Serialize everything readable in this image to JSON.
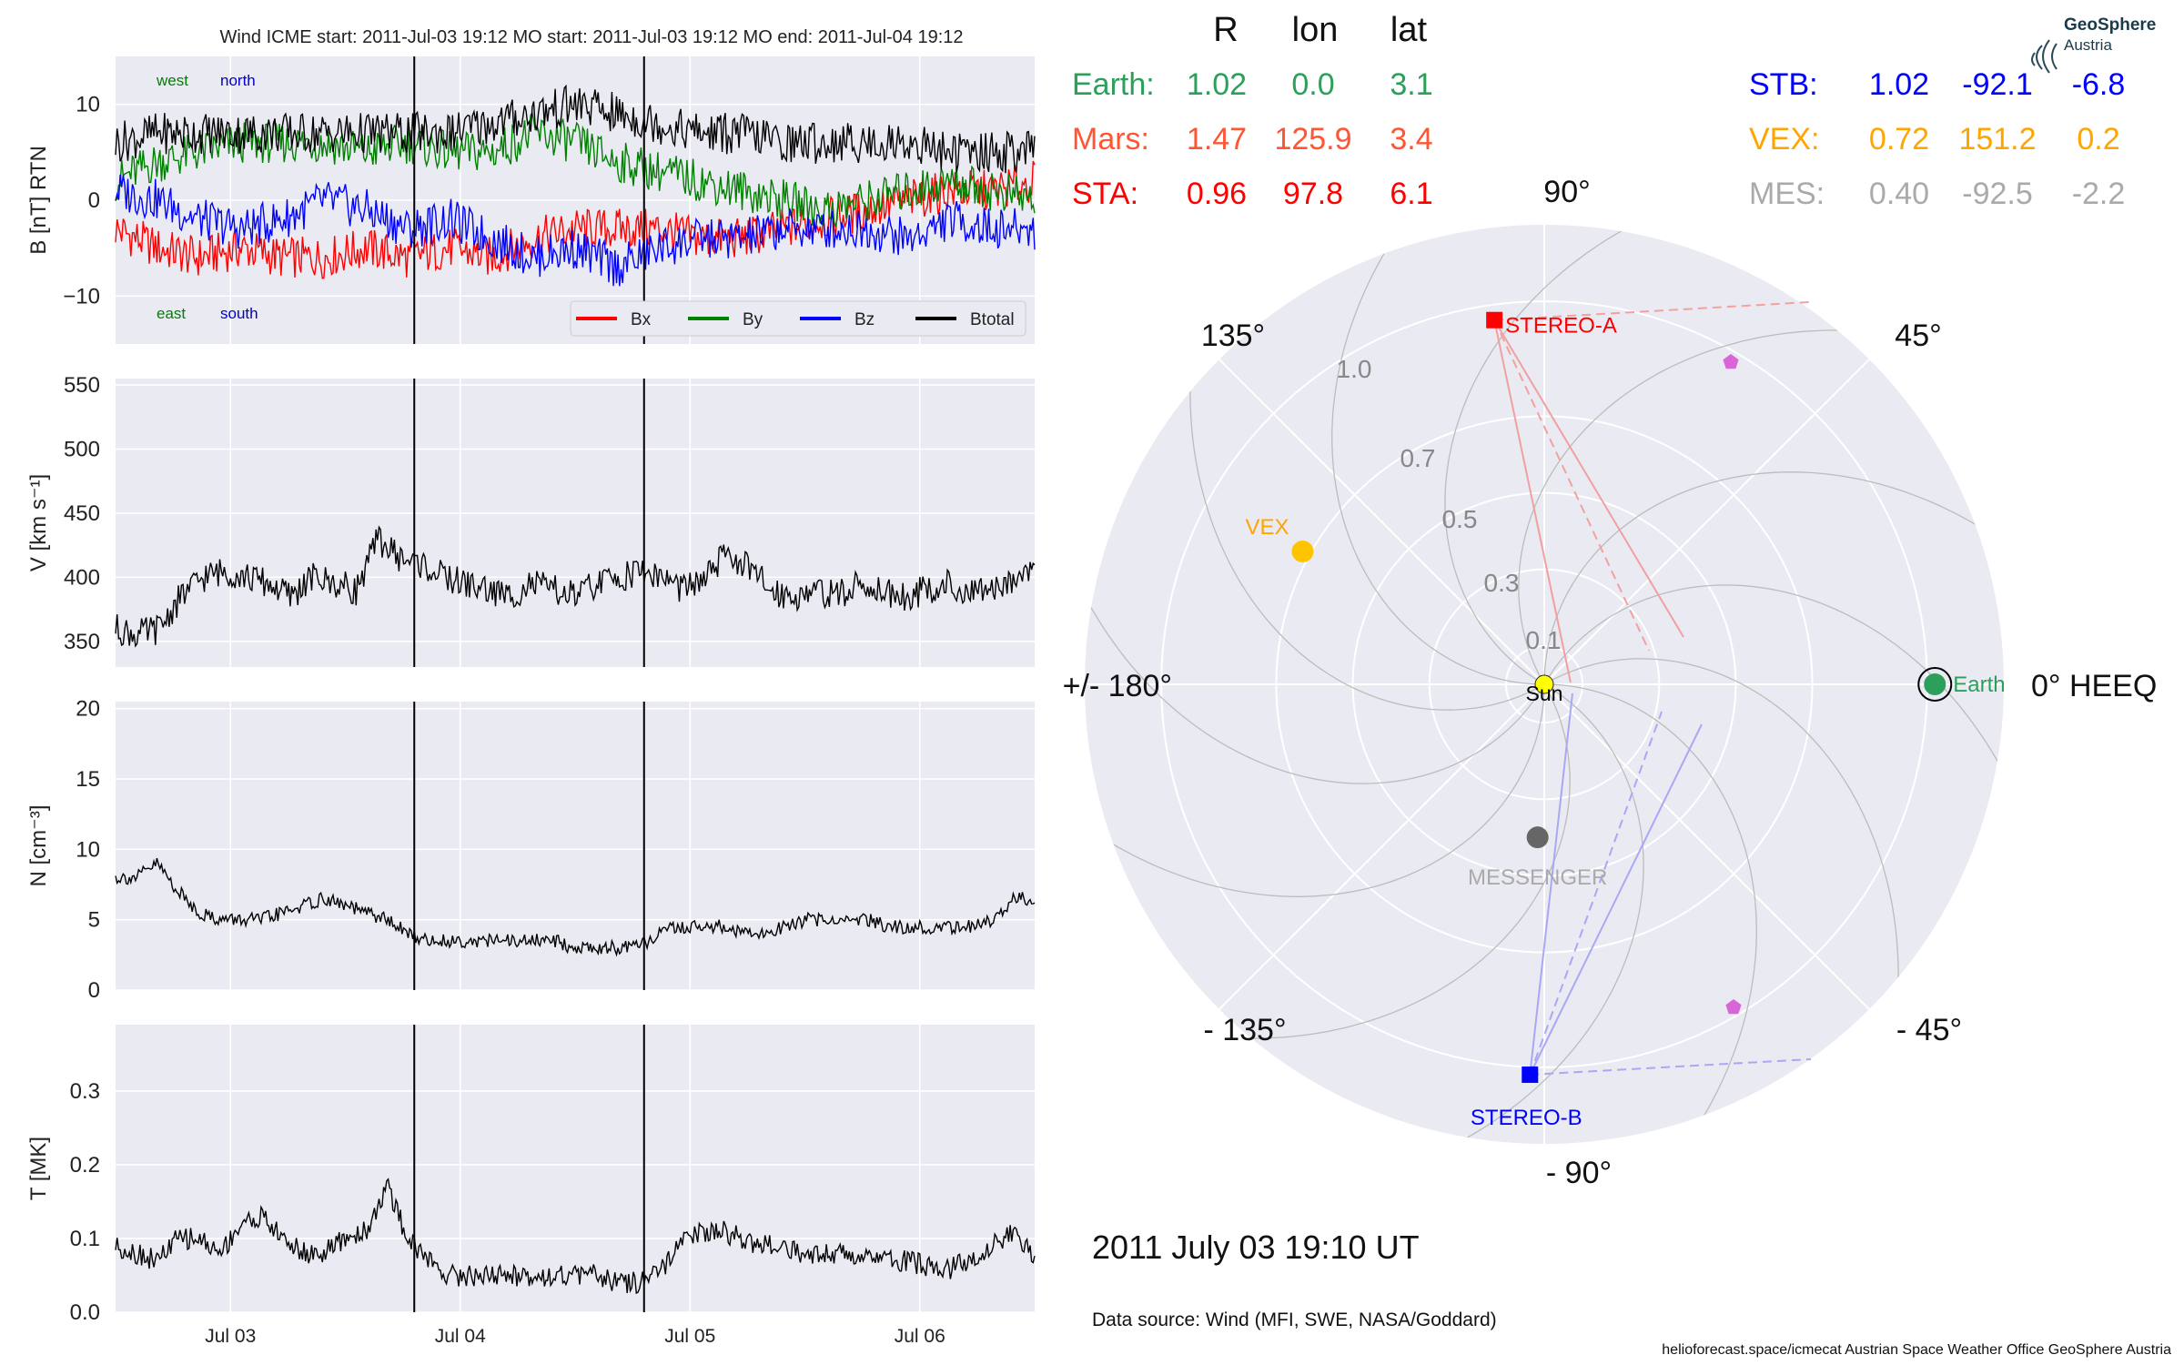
{
  "header": {
    "title": "Wind    ICME start: 2011-Jul-03 19:12   MO start: 2011-Jul-03 19:12   MO end: 2011-Jul-04 19:12"
  },
  "time_axis": {
    "start_day": "2011-07-02",
    "range": [
      "2011-07-02 12:00",
      "2011-07-06 12:00"
    ],
    "tick_labels": [
      "Jul 03",
      "Jul 04",
      "Jul 05",
      "Jul 06"
    ],
    "tick_positions": [
      "2011-07-03 00:00",
      "2011-07-04 00:00",
      "2011-07-05 00:00",
      "2011-07-06 00:00"
    ],
    "event_lines": [
      "2011-07-03 19:12",
      "2011-07-04 19:12"
    ]
  },
  "chart_data": [
    {
      "type": "line",
      "ylabel": "B [nT] RTN",
      "ylim": [
        -15,
        15
      ],
      "yticks": [
        10,
        0,
        -10
      ],
      "ytick_labels": [
        "10",
        "0",
        "−10"
      ],
      "annotations": {
        "west": "west",
        "north": "north",
        "east": "east",
        "south": "south"
      },
      "annotation_colors": {
        "west": "#008000",
        "north": "#0000cc",
        "east": "#008000",
        "south": "#0000cc"
      },
      "legend": {
        "position": "lower right",
        "entries": [
          "Bx",
          "By",
          "Bz",
          "Btotal"
        ]
      },
      "series": [
        {
          "name": "Bx",
          "color": "#ff0000",
          "values": [
            -3,
            -5,
            -6,
            -5,
            -6,
            -6,
            -5,
            -6,
            -5,
            -6,
            -4,
            -3,
            -3,
            -3,
            -4,
            -4,
            -3,
            -2,
            -1,
            0,
            1,
            1,
            2
          ]
        },
        {
          "name": "By",
          "color": "#008000",
          "values": [
            2,
            4,
            5,
            6,
            6,
            6,
            5,
            6,
            5,
            5,
            7,
            6,
            4,
            3,
            2,
            1,
            0,
            -1,
            0,
            1,
            2,
            1,
            0
          ]
        },
        {
          "name": "Bz",
          "color": "#0000ff",
          "values": [
            1,
            0,
            -2,
            -3,
            -2,
            0,
            -1,
            -3,
            -2,
            -4,
            -6,
            -5,
            -7,
            -5,
            -4,
            -4,
            -3,
            -3,
            -3,
            -4,
            -2,
            -3,
            -3
          ]
        },
        {
          "name": "Btotal",
          "color": "#000000",
          "values": [
            6,
            7,
            7,
            7,
            7,
            7,
            7,
            7,
            7,
            8,
            9,
            10,
            9,
            8,
            7,
            7,
            6,
            6,
            6,
            6,
            5,
            5,
            5
          ]
        }
      ]
    },
    {
      "type": "line",
      "ylabel": "V [km s⁻¹]",
      "ylim": [
        330,
        555
      ],
      "yticks": [
        550,
        500,
        450,
        400,
        350
      ],
      "ytick_labels": [
        "550",
        "500",
        "450",
        "400",
        "350"
      ],
      "series": [
        {
          "name": "",
          "color": "#000000",
          "values": [
            360,
            355,
            360,
            385,
            400,
            405,
            400,
            395,
            385,
            400,
            395,
            390,
            430,
            415,
            410,
            400,
            395,
            390,
            385,
            395,
            390,
            385,
            395,
            400,
            405,
            400,
            390,
            400,
            420,
            405,
            390,
            385,
            390,
            385,
            395,
            390,
            385,
            390,
            395,
            385,
            390,
            400,
            410
          ]
        }
      ]
    },
    {
      "type": "line",
      "ylabel": "N [cm⁻³]",
      "ylim": [
        0,
        20.5
      ],
      "yticks": [
        20,
        15,
        10,
        5,
        0
      ],
      "ytick_labels": [
        "20",
        "15",
        "10",
        "5",
        "0"
      ],
      "series": [
        {
          "name": "",
          "color": "#000000",
          "values": [
            8,
            8,
            9,
            7,
            5.5,
            5,
            5,
            5,
            5.5,
            6,
            6.5,
            6,
            5.5,
            5,
            4,
            3.5,
            3.5,
            3.5,
            3.5,
            3.5,
            3.5,
            3.5,
            3,
            3,
            3,
            3,
            4,
            4.5,
            4.5,
            4.5,
            4,
            4,
            4.5,
            5,
            5,
            5,
            5,
            4.5,
            4.5,
            4.5,
            4.5,
            4.5,
            5,
            6.5,
            6.5
          ]
        }
      ]
    },
    {
      "type": "line",
      "ylabel": "T [MK]",
      "ylim": [
        0,
        0.39
      ],
      "yticks": [
        0.3,
        0.2,
        0.1,
        0.0
      ],
      "ytick_labels": [
        "0.3",
        "0.2",
        "0.1",
        "0.0"
      ],
      "series": [
        {
          "name": "",
          "color": "#000000",
          "values": [
            0.09,
            0.08,
            0.07,
            0.1,
            0.1,
            0.08,
            0.12,
            0.13,
            0.1,
            0.08,
            0.08,
            0.1,
            0.11,
            0.17,
            0.1,
            0.07,
            0.05,
            0.05,
            0.05,
            0.05,
            0.05,
            0.05,
            0.05,
            0.05,
            0.04,
            0.04,
            0.05,
            0.09,
            0.11,
            0.11,
            0.1,
            0.09,
            0.09,
            0.08,
            0.08,
            0.08,
            0.08,
            0.07,
            0.07,
            0.06,
            0.06,
            0.07,
            0.09,
            0.11,
            0.07
          ]
        }
      ]
    }
  ],
  "table": {
    "headers": [
      "R",
      "lon",
      "lat"
    ],
    "left_rows": [
      {
        "name": "Earth:",
        "R": "1.02",
        "lon": "0.0",
        "lat": "3.1",
        "color": "#2ca05a"
      },
      {
        "name": "Mars:",
        "R": "1.47",
        "lon": "125.9",
        "lat": "3.4",
        "color": "#ff5533"
      },
      {
        "name": "STA:",
        "R": "0.96",
        "lon": "97.8",
        "lat": "6.1",
        "color": "#ff0000"
      }
    ],
    "right_rows": [
      {
        "name": "STB:",
        "R": "1.02",
        "lon": "-92.1",
        "lat": "-6.8",
        "color": "#0000ff"
      },
      {
        "name": "VEX:",
        "R": "0.72",
        "lon": "151.2",
        "lat": "0.2",
        "color": "#ffa500"
      },
      {
        "name": "MES:",
        "R": "0.40",
        "lon": "-92.5",
        "lat": "-2.2",
        "color": "#aaaaaa"
      }
    ]
  },
  "polar": {
    "angle_labels": [
      "90°",
      "45°",
      "0° HEEQ",
      "- 45°",
      "- 90°",
      "- 135°",
      "+/- 180°",
      "135°"
    ],
    "radius_labels": [
      "1.0",
      "0.7",
      "0.5",
      "0.3",
      "0.1"
    ],
    "rings_au": [
      0.1,
      0.3,
      0.5,
      0.7,
      1.0,
      1.2
    ],
    "max_au": 1.2,
    "sun_label": "Sun",
    "bodies": [
      {
        "label": "Earth",
        "r": 1.02,
        "lon": 0.0,
        "color": "#2ca05a",
        "marker": "circle-ring"
      },
      {
        "label": "STEREO-A",
        "r": 0.96,
        "lon": 97.8,
        "color": "#ff0000",
        "marker": "square"
      },
      {
        "label": "STEREO-B",
        "r": 1.02,
        "lon": -92.1,
        "color": "#0000ff",
        "marker": "square"
      },
      {
        "label": "VEX",
        "r": 0.72,
        "lon": 151.2,
        "color": "#ffc400",
        "marker": "circle"
      },
      {
        "label": "MESSENGER",
        "r": 0.4,
        "lon": -92.5,
        "color": "#666666",
        "marker": "circle"
      }
    ],
    "label_colors": {
      "VEX": "#ffa500",
      "MESSENGER": "#aaaaaa",
      "STEREO-A": "#ff0000",
      "STEREO-B": "#0000ff",
      "Earth": "#2ca05a"
    }
  },
  "footer": {
    "datetime": "2011 July 03  19:10 UT",
    "data_source": "Data source: Wind (MFI, SWE, NASA/Goddard)",
    "credits": "helioforecast.space/icmecat   Austrian Space Weather Office   GeoSphere Austria"
  },
  "logo": {
    "line1": "GeoSphere",
    "line2": "Austria"
  }
}
